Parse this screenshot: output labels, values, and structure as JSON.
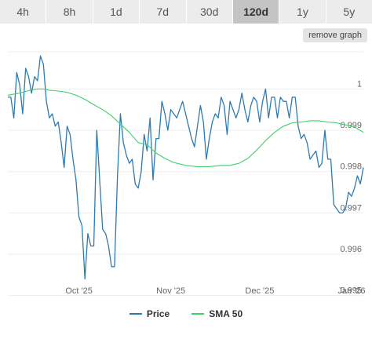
{
  "tabs": [
    {
      "label": "4h",
      "active": false
    },
    {
      "label": "8h",
      "active": false
    },
    {
      "label": "1d",
      "active": false
    },
    {
      "label": "7d",
      "active": false
    },
    {
      "label": "30d",
      "active": false
    },
    {
      "label": "120d",
      "active": true
    },
    {
      "label": "1y",
      "active": false
    },
    {
      "label": "5y",
      "active": false
    }
  ],
  "remove_graph_label": "remove graph",
  "colors": {
    "price": "#2f7ab0",
    "sma": "#3ecf6e",
    "grid": "#eeeeee",
    "axis_text": "#666666"
  },
  "chart_data": {
    "type": "line",
    "title": "",
    "xlabel": "",
    "ylabel": "",
    "x_range": [
      0,
      120
    ],
    "ylim": [
      0.99488,
      1.0009
    ],
    "x_ticks": [
      {
        "label": "Oct '25",
        "x": 24
      },
      {
        "label": "Nov '25",
        "x": 55
      },
      {
        "label": "Dec '25",
        "x": 85
      },
      {
        "label": "Jan '26",
        "x": 116
      }
    ],
    "y_ticks": [
      {
        "label": "1",
        "value": 1.0
      },
      {
        "label": "0.999",
        "value": 0.999
      },
      {
        "label": "0.998",
        "value": 0.998
      },
      {
        "label": "0.997",
        "value": 0.997
      },
      {
        "label": "0.996",
        "value": 0.996
      },
      {
        "label": "0.995",
        "value": 0.995
      }
    ],
    "legend_position": "bottom-center",
    "series": [
      {
        "name": "Price",
        "x": [
          0,
          1,
          2,
          3,
          4,
          5,
          6,
          7,
          8,
          9,
          10,
          11,
          12,
          13,
          14,
          15,
          16,
          17,
          18,
          19,
          20,
          21,
          22,
          23,
          24,
          25,
          26,
          27,
          28,
          29,
          30,
          31,
          32,
          33,
          34,
          35,
          36,
          37,
          38,
          39,
          40,
          41,
          42,
          43,
          44,
          45,
          46,
          47,
          48,
          49,
          50,
          51,
          52,
          53,
          54,
          55,
          56,
          57,
          58,
          59,
          60,
          61,
          62,
          63,
          64,
          65,
          66,
          67,
          68,
          69,
          70,
          71,
          72,
          73,
          74,
          75,
          76,
          77,
          78,
          79,
          80,
          81,
          82,
          83,
          84,
          85,
          86,
          87,
          88,
          89,
          90,
          91,
          92,
          93,
          94,
          95,
          96,
          97,
          98,
          99,
          100,
          101,
          102,
          103,
          104,
          105,
          106,
          107,
          108,
          109,
          110,
          111,
          112,
          113,
          114,
          115,
          116,
          117,
          118,
          119,
          120
        ],
        "values": [
          0.9998,
          0.9998,
          0.9993,
          1.0004,
          1.0001,
          0.9994,
          1.0005,
          1.0003,
          0.9999,
          1.0003,
          1.0002,
          1.0008,
          1.0006,
          0.9997,
          0.9993,
          0.9994,
          0.9991,
          0.9992,
          0.9987,
          0.9981,
          0.9991,
          0.9989,
          0.9983,
          0.9978,
          0.9969,
          0.9967,
          0.9954,
          0.9965,
          0.9962,
          0.9962,
          0.999,
          0.9978,
          0.9966,
          0.9965,
          0.9962,
          0.9957,
          0.9957,
          0.9979,
          0.9994,
          0.9987,
          0.9984,
          0.9982,
          0.9983,
          0.9977,
          0.9976,
          0.998,
          0.9989,
          0.9985,
          0.9993,
          0.9978,
          0.9988,
          0.9988,
          0.9997,
          0.9994,
          0.999,
          0.9995,
          0.9994,
          0.9993,
          0.9995,
          0.9997,
          0.9994,
          0.9991,
          0.9988,
          0.9986,
          0.9991,
          0.9996,
          0.9992,
          0.9983,
          0.9988,
          0.9992,
          0.9994,
          0.9993,
          0.9998,
          0.9996,
          0.9989,
          0.9997,
          0.9995,
          0.9993,
          0.9995,
          0.9999,
          0.9995,
          0.9992,
          0.9996,
          0.9998,
          0.9997,
          0.9992,
          0.9997,
          1.0,
          0.9993,
          0.9998,
          0.9998,
          0.9993,
          0.9998,
          0.9997,
          0.9997,
          0.9993,
          0.9998,
          0.9998,
          0.9991,
          0.9988,
          0.9989,
          0.9987,
          0.9983,
          0.9984,
          0.9985,
          0.9981,
          0.9982,
          0.999,
          0.9983,
          0.9983,
          0.9972,
          0.9971,
          0.997,
          0.997,
          0.9971,
          0.9975,
          0.9974,
          0.9976,
          0.9979,
          0.9977,
          0.9981
        ]
      },
      {
        "name": "SMA 50",
        "x": [
          0,
          4,
          8,
          10,
          12,
          14,
          17,
          20,
          23,
          26,
          29,
          32,
          35,
          38,
          41,
          44,
          47,
          50,
          53,
          56,
          60,
          64,
          68,
          72,
          75,
          78,
          81,
          84,
          87,
          90,
          93,
          96,
          99,
          102,
          105,
          108,
          111,
          114,
          117,
          120
        ],
        "values": [
          0.99985,
          0.9999,
          0.99998,
          1.0,
          1.0,
          0.99997,
          0.99995,
          0.99992,
          0.99985,
          0.99975,
          0.99962,
          0.9995,
          0.99935,
          0.99915,
          0.99895,
          0.9987,
          0.99865,
          0.99845,
          0.99832,
          0.99822,
          0.99815,
          0.99812,
          0.99812,
          0.99815,
          0.99815,
          0.9982,
          0.99832,
          0.99852,
          0.99875,
          0.99895,
          0.9991,
          0.99918,
          0.9992,
          0.99923,
          0.99923,
          0.9992,
          0.99918,
          0.99913,
          0.99908,
          0.99895
        ]
      }
    ]
  }
}
